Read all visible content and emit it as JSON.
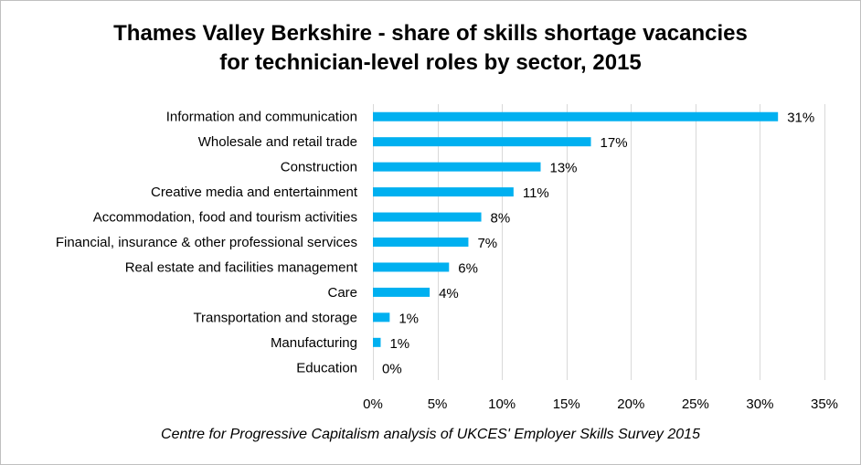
{
  "chart_data": {
    "type": "bar",
    "orientation": "horizontal",
    "title_lines": [
      "Thames Valley Berkshire - share of skills shortage vacancies",
      "for technician-level roles by sector, 2015"
    ],
    "categories": [
      "Information and communication",
      "Wholesale and retail trade",
      "Construction",
      "Creative media and entertainment",
      "Accommodation, food and tourism activities",
      "Financial, insurance & other professional services",
      "Real estate and facilities management",
      "Care",
      "Transportation and storage",
      "Manufacturing",
      "Education"
    ],
    "values": [
      31.4,
      16.9,
      13.0,
      10.9,
      8.4,
      7.4,
      5.9,
      4.4,
      1.3,
      0.6,
      0.0
    ],
    "data_labels": [
      "31%",
      "17%",
      "13%",
      "11%",
      "8%",
      "7%",
      "6%",
      "4%",
      "1%",
      "1%",
      "0%"
    ],
    "xlim": [
      0,
      35
    ],
    "x_ticks": [
      0,
      5,
      10,
      15,
      20,
      25,
      30,
      35
    ],
    "x_tick_labels": [
      "0%",
      "5%",
      "10%",
      "15%",
      "20%",
      "25%",
      "30%",
      "35%"
    ],
    "grid": "vertical",
    "bar_color": "#00b0f0",
    "grid_color": "#d9d9d9",
    "source_note": "Centre for Progressive Capitalism analysis of UKCES' Employer Skills Survey 2015"
  }
}
